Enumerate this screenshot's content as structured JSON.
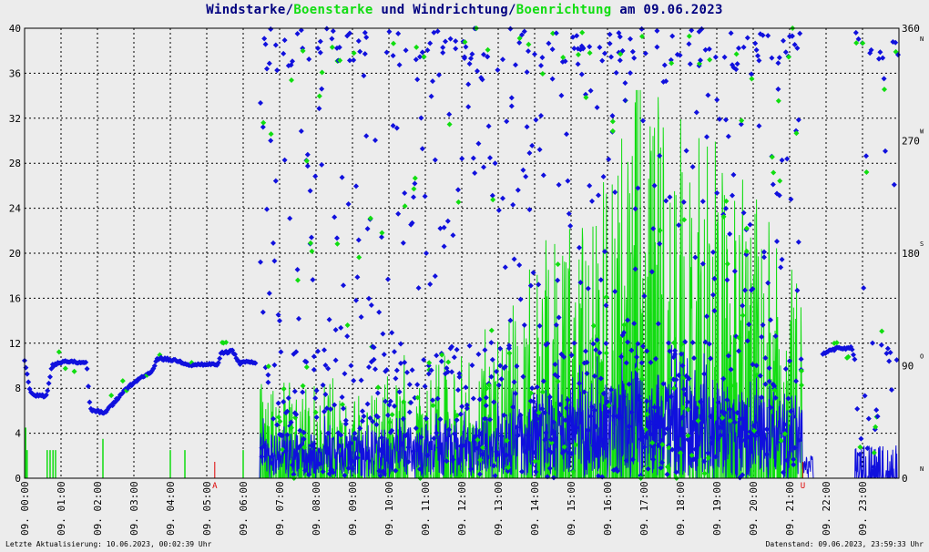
{
  "chart_data": {
    "type": "line",
    "title": {
      "part1": "Windstarke",
      "sep1": "/",
      "part2": "Boenstarke",
      "mid": " und ",
      "part3": "Windrichtung",
      "sep2": "/",
      "part4": "Boenrichtung",
      "tail": " am 09.06.2023"
    },
    "colors": {
      "wind": "#1010dd",
      "gust": "#10dd10",
      "title": "#000080",
      "grid": "#000000",
      "marker": "#dd0000",
      "background": "#ececec"
    },
    "y_left": {
      "min": 0,
      "max": 40,
      "ticks": [
        "0",
        "4",
        "8",
        "12",
        "16",
        "20",
        "24",
        "28",
        "32",
        "36",
        "40"
      ]
    },
    "y_right": {
      "min": 0,
      "max": 360,
      "ticks": [
        {
          "value": 0,
          "label": "0",
          "dir": "N"
        },
        {
          "value": 90,
          "label": "90",
          "dir": "O"
        },
        {
          "value": 180,
          "label": "180",
          "dir": "S"
        },
        {
          "value": 270,
          "label": "270",
          "dir": "W"
        },
        {
          "value": 360,
          "label": "360",
          "dir": "N"
        }
      ]
    },
    "x_axis": {
      "min": 0,
      "max": 24,
      "unit": "hours"
    },
    "x_ticks": [
      "09. 00:00",
      "09. 01:00",
      "09. 02:00",
      "09. 03:00",
      "09. 04:00",
      "09. 05:00",
      "09. 06:00",
      "09. 07:00",
      "09. 08:00",
      "09. 09:00",
      "09. 10:00",
      "09. 11:00",
      "09. 12:00",
      "09. 13:00",
      "09. 14:00",
      "09. 15:00",
      "09. 16:00",
      "09. 17:00",
      "09. 18:00",
      "09. 19:00",
      "09. 20:00",
      "09. 21:00",
      "09. 22:00",
      "09. 23:00"
    ],
    "sun_markers": [
      {
        "hour": 5.22,
        "label": "A"
      },
      {
        "hour": 21.36,
        "label": "U"
      }
    ],
    "direction_profile": [
      {
        "h": 0.0,
        "deg": 95
      },
      {
        "h": 0.15,
        "deg": 70
      },
      {
        "h": 0.3,
        "deg": 66
      },
      {
        "h": 0.6,
        "deg": 66
      },
      {
        "h": 0.75,
        "deg": 90
      },
      {
        "h": 1.0,
        "deg": 93
      },
      {
        "h": 1.7,
        "deg": 93
      },
      {
        "h": 1.8,
        "deg": 55
      },
      {
        "h": 2.2,
        "deg": 52
      },
      {
        "h": 2.5,
        "deg": 62
      },
      {
        "h": 2.8,
        "deg": 72
      },
      {
        "h": 3.2,
        "deg": 80
      },
      {
        "h": 3.5,
        "deg": 86
      },
      {
        "h": 3.65,
        "deg": 96
      },
      {
        "h": 4.2,
        "deg": 94
      },
      {
        "h": 4.5,
        "deg": 91
      },
      {
        "h": 5.3,
        "deg": 91
      },
      {
        "h": 5.4,
        "deg": 100
      },
      {
        "h": 5.7,
        "deg": 102
      },
      {
        "h": 5.9,
        "deg": 92
      },
      {
        "h": 6.2,
        "deg": 93
      },
      {
        "h": 6.35,
        "deg": 92
      },
      {
        "h": 21.9,
        "deg": 100
      },
      {
        "h": 22.3,
        "deg": 104
      },
      {
        "h": 22.7,
        "deg": 104
      },
      {
        "h": 22.85,
        "deg": 90
      }
    ],
    "gust_spikes": [
      {
        "h": 0.03,
        "v": 4.5
      },
      {
        "h": 0.07,
        "v": 2.5
      },
      {
        "h": 0.62,
        "v": 2.5
      },
      {
        "h": 0.7,
        "v": 2.5
      },
      {
        "h": 0.78,
        "v": 2.5
      },
      {
        "h": 0.85,
        "v": 2.5
      },
      {
        "h": 2.15,
        "v": 3.5
      },
      {
        "h": 4.0,
        "v": 2.5
      },
      {
        "h": 4.4,
        "v": 2.5
      },
      {
        "h": 6.0,
        "v": 2.5
      }
    ],
    "active_period": {
      "from": 6.45,
      "to": 21.35,
      "peak_hour": 17.5,
      "max_wind": 12.5,
      "max_gust": 34.5
    },
    "evening_period": {
      "from": 22.8,
      "to": 23.99
    }
  },
  "footer": {
    "left": "Letzte Aktualisierung: 10.06.2023, 00:02:39 Uhr",
    "right": "Datenstand: 09.06.2023, 23:59:33 Uhr"
  }
}
